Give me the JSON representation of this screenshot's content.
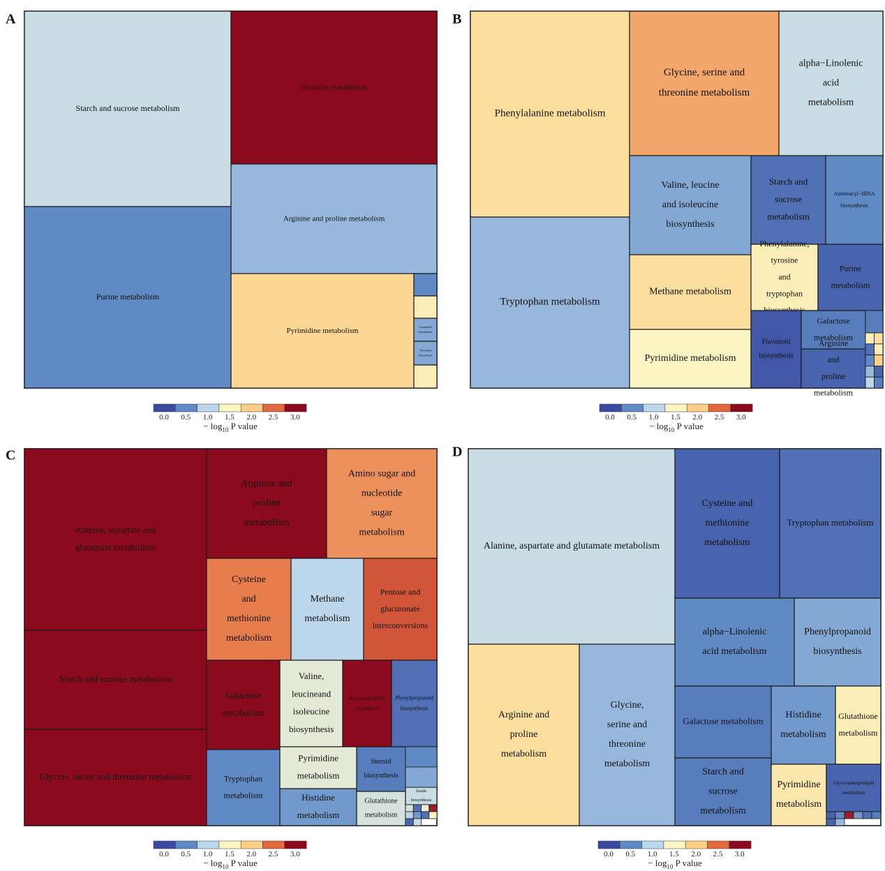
{
  "colorbar": {
    "ticks": [
      "0.0",
      "0.5",
      "1.0",
      "1.5",
      "2.0",
      "2.5",
      "3.0"
    ],
    "title_prefix": "− log",
    "title_sub": "10",
    "title_suffix": " P value",
    "colors": [
      "#3b4aa0",
      "#5f8ac4",
      "#bcd6ec",
      "#fbf5c4",
      "#fccf87",
      "#e2683f",
      "#8b0a1e"
    ]
  },
  "chart_data": [
    {
      "type": "treemap",
      "panel": "A",
      "color_metric": "−log10 P value",
      "cells": [
        {
          "label": "Starch and sucrose metabolism",
          "value": 1.1
        },
        {
          "label": "Histidine metabolism",
          "value": 3.0
        },
        {
          "label": "Purine metabolism",
          "value": 0.5
        },
        {
          "label": "Arginine and proline metabolism",
          "value": 0.8
        },
        {
          "label": "Pyrimidine metabolism",
          "value": 1.9
        },
        {
          "label": "",
          "value": 0.5
        },
        {
          "label": "",
          "value": 1.6
        },
        {
          "label": "Carotenoid biosynthesis",
          "value": 0.7
        },
        {
          "label": "Flavonoid biosynthesis",
          "value": 0.7
        },
        {
          "label": "",
          "value": 1.6
        }
      ]
    },
    {
      "type": "treemap",
      "panel": "B",
      "color_metric": "−log10 P value",
      "cells": [
        {
          "label": "Phenylalanine metabolism",
          "value": 1.8
        },
        {
          "label": "Glycine, serine and threonine metabolism",
          "value": 2.2
        },
        {
          "label": "alpha−Linolenic acid metabolism",
          "value": 1.1
        },
        {
          "label": "Tryptophan metabolism",
          "value": 0.8
        },
        {
          "label": "Valine, leucine and isoleucine biosynthesis",
          "value": 0.7
        },
        {
          "label": "Starch and sucrose metabolism",
          "value": 0.3
        },
        {
          "label": "Aminoacyl−tRNA biosynthesis",
          "value": 0.5
        },
        {
          "label": "Methane metabolism",
          "value": 1.8
        },
        {
          "label": "Phenylalanine, tyrosine and tryptophan biosynthesis",
          "value": 1.6
        },
        {
          "label": "Purine metabolism",
          "value": 0.2
        },
        {
          "label": "Pyrimidine metabolism",
          "value": 1.5
        },
        {
          "label": "Flavonoid biosynthesis",
          "value": 0.1
        },
        {
          "label": "Galactose metabolism",
          "value": 0.4
        },
        {
          "label": "Arginine and proline metabolism",
          "value": 0.2
        }
      ]
    },
    {
      "type": "treemap",
      "panel": "C",
      "color_metric": "−log10 P value",
      "cells": [
        {
          "label": "Alanine, aspartate and glutamate metabolism",
          "value": 3.0
        },
        {
          "label": "Arginine and proline metabolism",
          "value": 3.0
        },
        {
          "label": "Amino sugar and nucleotide sugar metabolism",
          "value": 2.3
        },
        {
          "label": "Starch and sucrose metabolism",
          "value": 3.0
        },
        {
          "label": "Cysteine and methionine metabolism",
          "value": 2.4
        },
        {
          "label": "Methane metabolism",
          "value": 1.0
        },
        {
          "label": "Pentose and glucuronate interconversions",
          "value": 2.6
        },
        {
          "label": "Glycine, serine and threonine metabolism",
          "value": 3.0
        },
        {
          "label": "Galactose metabolism",
          "value": 3.0
        },
        {
          "label": "Valine, leucineand isoleucine biosynthesis",
          "value": 1.3
        },
        {
          "label": "Aminoacyl−tRNA biosynthesis",
          "value": 3.0
        },
        {
          "label": "Phenylpropanoid biosynthesis",
          "value": 0.3
        },
        {
          "label": "Tryptophan metabolism",
          "value": 0.5
        },
        {
          "label": "Pyrimidine metabolism",
          "value": 1.3
        },
        {
          "label": "Steroid biosynthesis",
          "value": 0.4
        },
        {
          "label": "Histidine metabolism",
          "value": 0.6
        },
        {
          "label": "Glutathione metabolism",
          "value": 1.2
        },
        {
          "label": "Zeatin biosynthesis",
          "value": 1.1
        }
      ]
    },
    {
      "type": "treemap",
      "panel": "D",
      "color_metric": "−log10 P value",
      "cells": [
        {
          "label": "Alanine, aspartate and glutamate metabolism",
          "value": 1.1
        },
        {
          "label": "Cysteine and methionine metabolism",
          "value": 0.2
        },
        {
          "label": "Tryptophan metabolism",
          "value": 0.3
        },
        {
          "label": "alpha−Linolenic acid metabolism",
          "value": 0.5
        },
        {
          "label": "Phenylpropanoid biosynthesis",
          "value": 0.7
        },
        {
          "label": "Arginine and proline metabolism",
          "value": 1.8
        },
        {
          "label": "Glycine, serine and threonine metabolism",
          "value": 0.8
        },
        {
          "label": "Galactose metabolism",
          "value": 0.4
        },
        {
          "label": "Histidine metabolism",
          "value": 0.6
        },
        {
          "label": "Glutathione metabolism",
          "value": 1.6
        },
        {
          "label": "Starch and sucrose metabolism",
          "value": 0.4
        },
        {
          "label": "Pyrimidine metabolism",
          "value": 1.7
        },
        {
          "label": "Glycerophospholipid metabolism",
          "value": 0.2
        }
      ]
    }
  ]
}
